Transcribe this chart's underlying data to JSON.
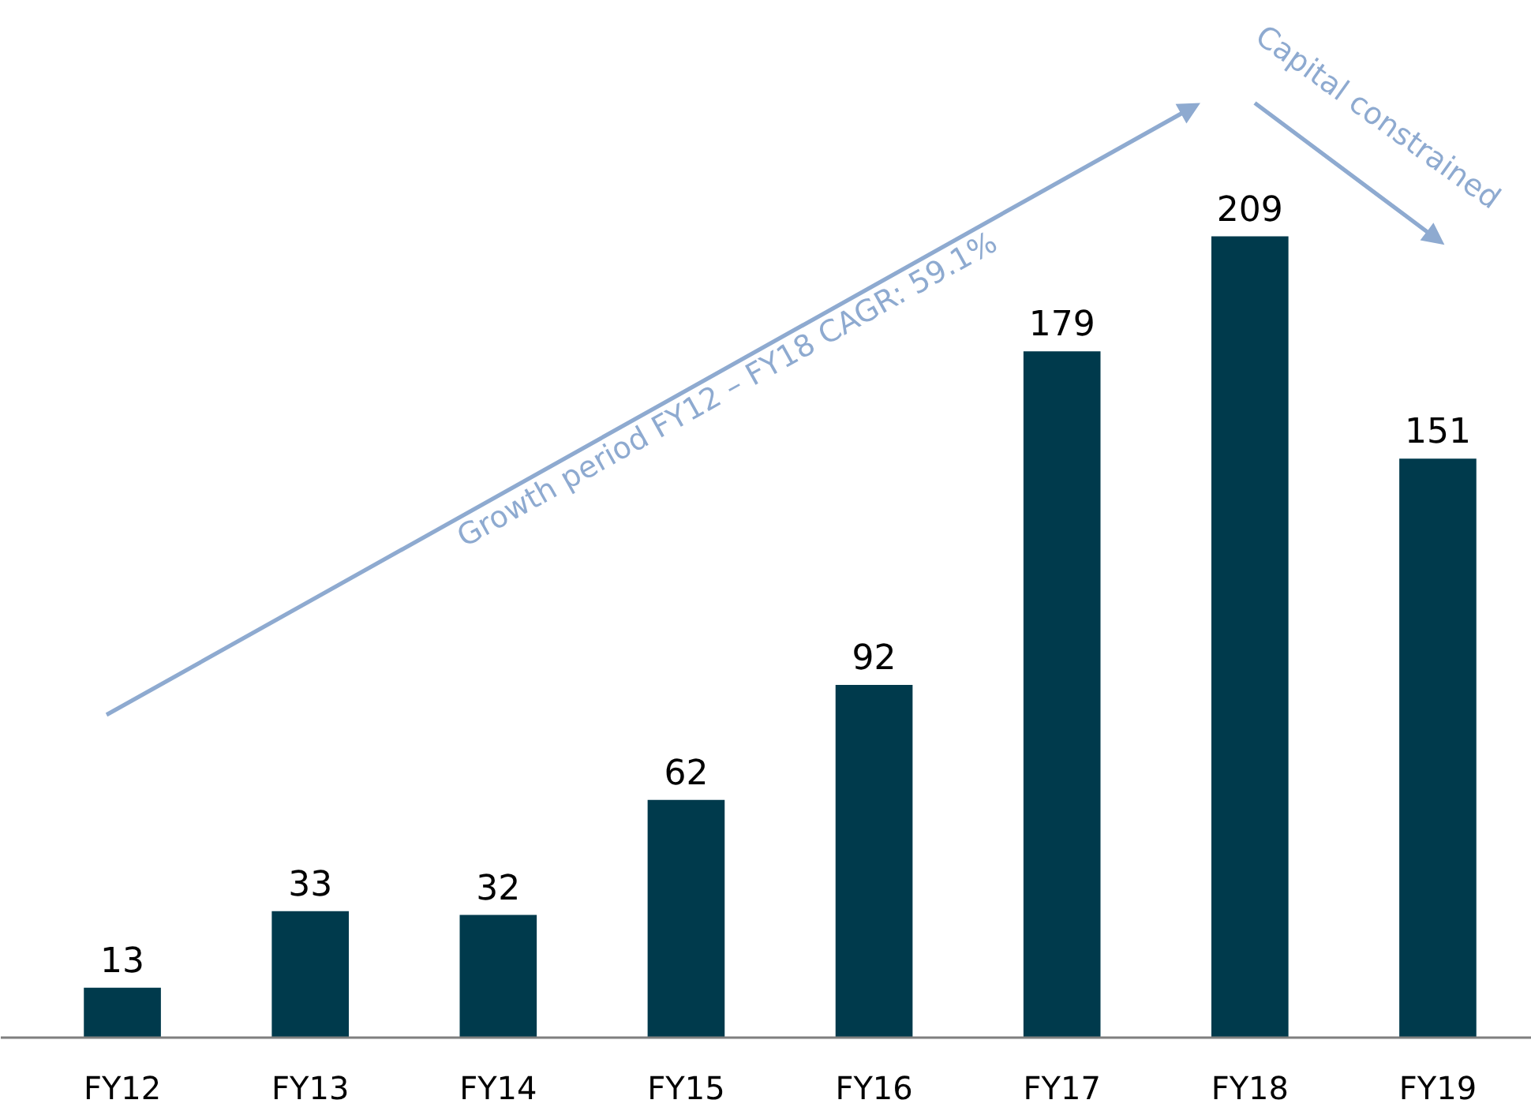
{
  "chart_data": {
    "type": "bar",
    "categories": [
      "FY12",
      "FY13",
      "FY14",
      "FY15",
      "FY16",
      "FY17",
      "FY18",
      "FY19"
    ],
    "values": [
      13,
      33,
      32,
      62,
      92,
      179,
      209,
      151
    ],
    "color": "#003a4c",
    "data_labels": true,
    "grid": false,
    "annotations": [
      "Growth period FY12 – FY18 CAGR: 59.1%",
      "Capital constrained"
    ]
  }
}
